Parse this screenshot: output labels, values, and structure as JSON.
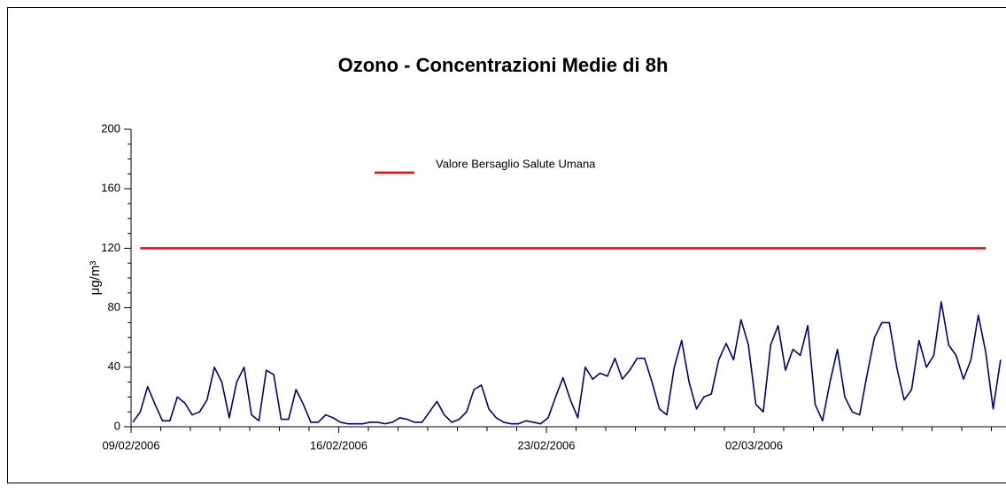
{
  "chart_data": {
    "type": "line",
    "title": "Ozono -  Concentrazioni Medie di 8h",
    "ylabel": "μg/m³",
    "categories": [
      "09/02/2006",
      null,
      null,
      null,
      null,
      null,
      null,
      null,
      null,
      null,
      null,
      null,
      null,
      null,
      null,
      null,
      null,
      null,
      null,
      null,
      null,
      null,
      null,
      null,
      null,
      null,
      null,
      null,
      "16/02/2006",
      null,
      null,
      null,
      null,
      null,
      null,
      null,
      null,
      null,
      null,
      null,
      null,
      null,
      null,
      null,
      null,
      null,
      null,
      null,
      null,
      null,
      null,
      null,
      null,
      null,
      null,
      null,
      "23/02/2006",
      null,
      null,
      null,
      null,
      null,
      null,
      null,
      null,
      null,
      null,
      null,
      null,
      null,
      null,
      null,
      null,
      null,
      null,
      null,
      null,
      null,
      null,
      null,
      null,
      null,
      null,
      null,
      "02/03/2006",
      null,
      null,
      null,
      null,
      null,
      null,
      null,
      null,
      null,
      null,
      null,
      null,
      null,
      null,
      null,
      null,
      null,
      null,
      null,
      null,
      null,
      null,
      null,
      null,
      null,
      null,
      null,
      null,
      null,
      null,
      null,
      null,
      null
    ],
    "series": [
      {
        "name": "Ozono",
        "color": "#000080",
        "values": [
          3,
          10,
          27,
          15,
          4,
          4,
          20,
          16,
          8,
          10,
          18,
          40,
          30,
          6,
          30,
          40,
          8,
          4,
          38,
          35,
          5,
          5,
          25,
          15,
          3,
          3,
          8,
          6,
          3,
          2,
          2,
          2,
          3,
          3,
          2,
          3,
          6,
          5,
          3,
          3,
          10,
          17,
          8,
          3,
          5,
          10,
          25,
          28,
          12,
          6,
          3,
          2,
          2,
          4,
          3,
          2,
          6,
          20,
          33,
          18,
          6,
          40,
          32,
          36,
          34,
          46,
          32,
          38,
          46,
          46,
          30,
          12,
          8,
          40,
          58,
          30,
          12,
          20,
          22,
          45,
          56,
          45,
          72,
          55,
          15,
          10,
          55,
          68,
          38,
          52,
          48,
          68,
          15,
          4,
          30,
          52,
          20,
          10,
          8,
          35,
          60,
          70,
          70,
          40,
          18,
          25,
          58,
          40,
          48,
          84,
          55,
          48,
          32,
          45,
          75,
          50,
          12,
          45
        ]
      }
    ],
    "reference_line": {
      "name": "Valore Bersaglio Salute Umana",
      "value": 120,
      "color": "#ff0000"
    },
    "ylim": [
      0,
      200
    ],
    "yticks": [
      0,
      40,
      80,
      120,
      160,
      200
    ]
  }
}
